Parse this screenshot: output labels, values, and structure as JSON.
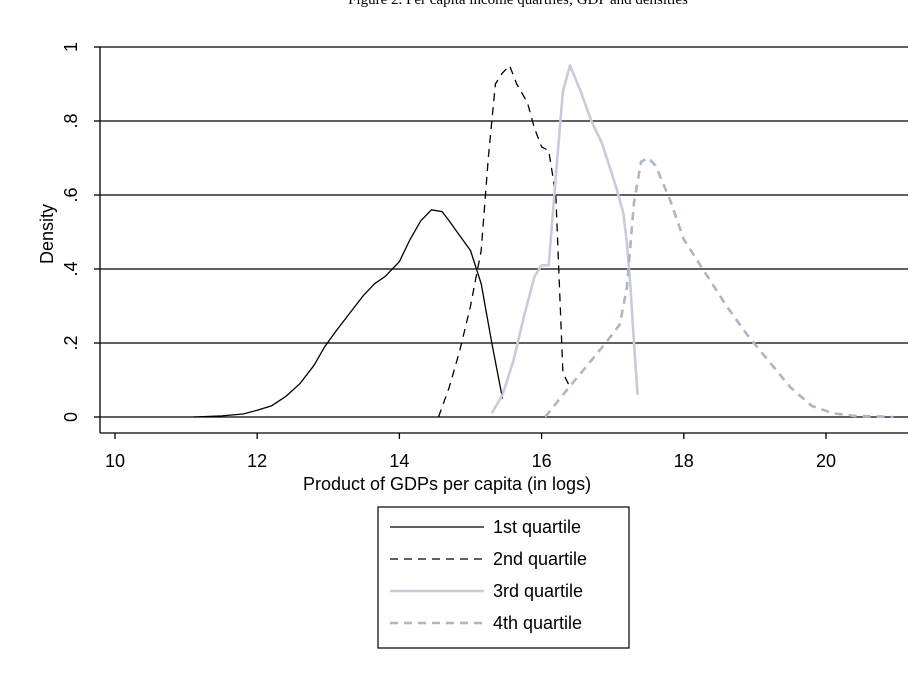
{
  "top_caption": "Figure 2. Per capita income quartiles; GDP and densities",
  "chart_data": {
    "type": "line",
    "title": "",
    "xlabel": "Product of GDPs per capita (in logs)",
    "ylabel": "Density",
    "xlim": [
      10,
      21
    ],
    "ylim": [
      0,
      1
    ],
    "x_ticks": [
      10,
      12,
      14,
      16,
      18,
      20
    ],
    "x_tick_labels": [
      "10",
      "12",
      "14",
      "16",
      "18",
      "20"
    ],
    "y_ticks": [
      0,
      0.2,
      0.4,
      0.6,
      0.8,
      1
    ],
    "y_tick_labels": [
      "0",
      ".2",
      ".4",
      ".6",
      ".8",
      "1"
    ],
    "grid": "horizontal",
    "legend_position": "bottom",
    "series": [
      {
        "name": "1st quartile",
        "color": "#000000",
        "style": "solid",
        "x": [
          11.1,
          11.5,
          11.8,
          12.0,
          12.2,
          12.4,
          12.6,
          12.8,
          12.95,
          13.1,
          13.3,
          13.5,
          13.65,
          13.8,
          14.0,
          14.15,
          14.3,
          14.45,
          14.6,
          14.7,
          14.85,
          15.0,
          15.15,
          15.3,
          15.45
        ],
        "y": [
          0.0,
          0.003,
          0.008,
          0.018,
          0.03,
          0.055,
          0.09,
          0.14,
          0.19,
          0.23,
          0.28,
          0.33,
          0.36,
          0.38,
          0.42,
          0.48,
          0.53,
          0.56,
          0.555,
          0.53,
          0.49,
          0.45,
          0.36,
          0.2,
          0.05
        ]
      },
      {
        "name": "2nd quartile",
        "color": "#000000",
        "style": "dashed",
        "x": [
          14.55,
          14.7,
          14.85,
          15.0,
          15.15,
          15.25,
          15.35,
          15.45,
          15.55,
          15.65,
          15.8,
          15.9,
          16.0,
          16.1,
          16.2,
          16.3,
          16.4
        ],
        "y": [
          0.0,
          0.08,
          0.18,
          0.3,
          0.45,
          0.7,
          0.9,
          0.93,
          0.95,
          0.9,
          0.85,
          0.78,
          0.73,
          0.72,
          0.6,
          0.12,
          0.08
        ]
      },
      {
        "name": "3rd quartile",
        "color": "#c7ccd8",
        "style": "solid",
        "x": [
          15.3,
          15.45,
          15.6,
          15.75,
          15.9,
          16.0,
          16.1,
          16.2,
          16.3,
          16.4,
          16.55,
          16.7,
          16.85,
          16.95,
          17.05,
          17.15,
          17.2,
          17.25,
          17.3,
          17.35
        ],
        "y": [
          0.01,
          0.06,
          0.15,
          0.27,
          0.38,
          0.41,
          0.41,
          0.65,
          0.88,
          0.95,
          0.88,
          0.8,
          0.74,
          0.68,
          0.62,
          0.55,
          0.47,
          0.35,
          0.2,
          0.06
        ]
      },
      {
        "name": "4th quartile",
        "color": "#aeb6c6",
        "style": "dashed",
        "x": [
          16.05,
          16.3,
          16.6,
          16.9,
          17.1,
          17.2,
          17.3,
          17.4,
          17.5,
          17.6,
          17.8,
          18.0,
          18.3,
          18.6,
          18.9,
          19.2,
          19.5,
          19.8,
          20.1,
          20.4,
          20.7,
          20.95
        ],
        "y": [
          0.0,
          0.06,
          0.13,
          0.2,
          0.25,
          0.35,
          0.58,
          0.69,
          0.7,
          0.68,
          0.59,
          0.48,
          0.39,
          0.3,
          0.22,
          0.15,
          0.08,
          0.03,
          0.01,
          0.003,
          0.002,
          0.0
        ]
      }
    ]
  }
}
